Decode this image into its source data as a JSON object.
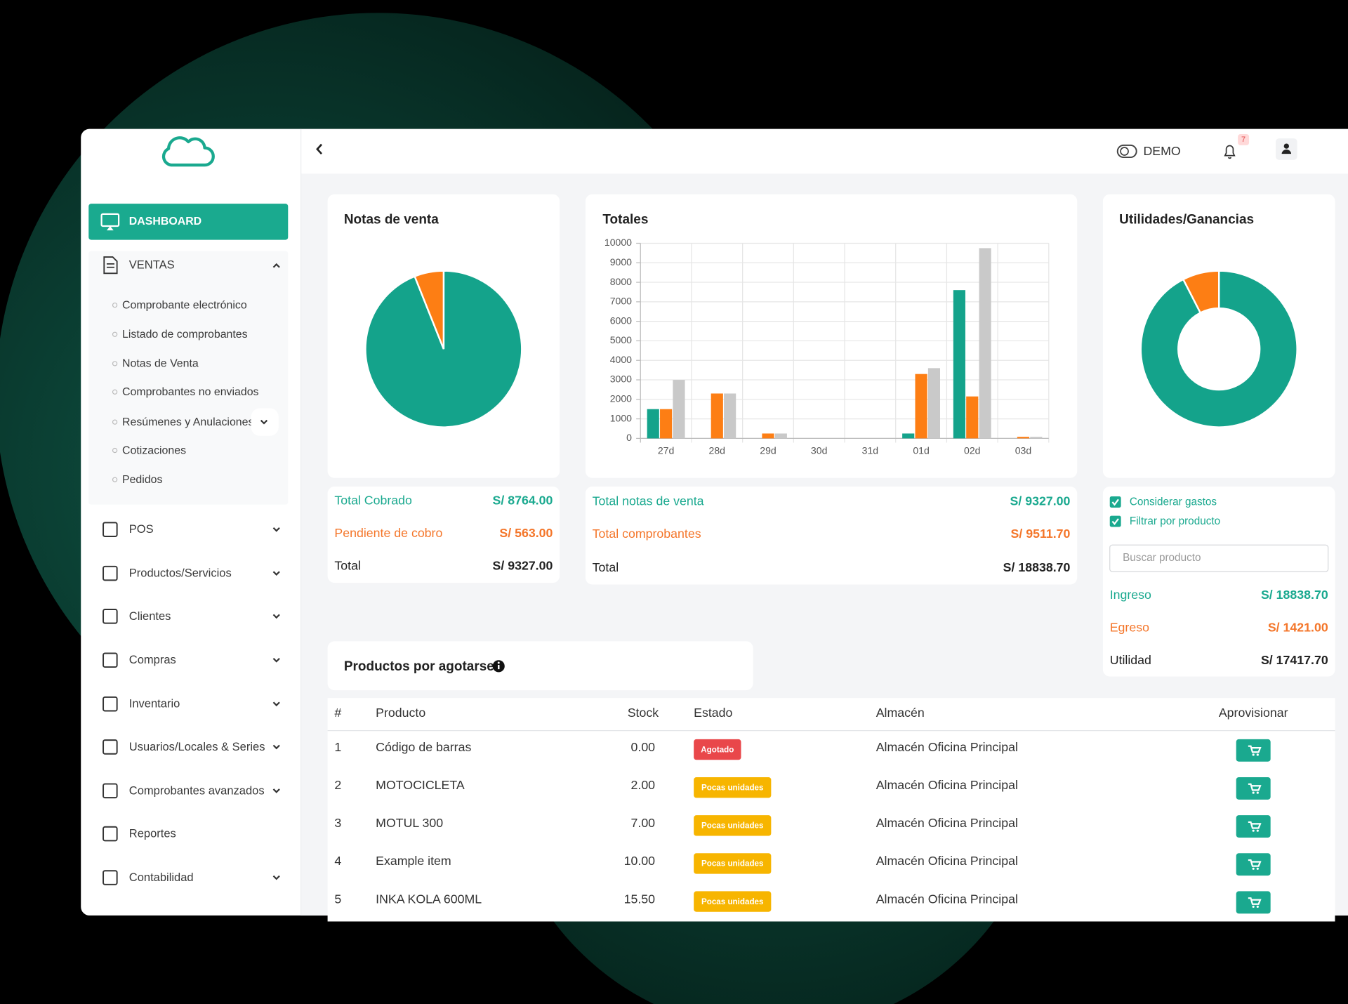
{
  "sidebar": {
    "active": "DASHBOARD",
    "section": "VENTAS",
    "submenu": [
      "Comprobante electrónico",
      "Listado de comprobantes",
      "Notas de Venta",
      "Comprobantes no enviados",
      "Resúmenes y Anulaciones",
      "Cotizaciones",
      "Pedidos"
    ],
    "menu": [
      "POS",
      "Productos/Servicios",
      "Clientes",
      "Compras",
      "Inventario",
      "Usuarios/Locales & Series",
      "Comprobantes avanzados",
      "Reportes",
      "Contabilidad"
    ]
  },
  "header": {
    "mode": "DEMO",
    "notifications": 7
  },
  "chart_data": [
    {
      "type": "pie",
      "title": "Notas de venta",
      "values": [
        8764,
        563
      ],
      "colors": [
        "#14a38b",
        "#fd7e14"
      ]
    },
    {
      "type": "bar",
      "title": "Totales",
      "categories": [
        "27d",
        "28d",
        "29d",
        "30d",
        "31d",
        "01d",
        "02d",
        "03d"
      ],
      "series": [
        {
          "color": "#14a38b",
          "values": [
            1500,
            0,
            0,
            0,
            0,
            250,
            7600,
            0
          ]
        },
        {
          "color": "#fd7e14",
          "values": [
            1500,
            2300,
            250,
            0,
            0,
            3300,
            2150,
            80
          ]
        },
        {
          "color": "#c9c9c9",
          "values": [
            3000,
            2300,
            250,
            0,
            0,
            3600,
            9750,
            80
          ]
        }
      ],
      "ylim": [
        0,
        10000
      ],
      "yticks": [
        0,
        1000,
        2000,
        3000,
        4000,
        5000,
        6000,
        7000,
        8000,
        9000,
        10000
      ],
      "grid": true
    },
    {
      "type": "doughnut",
      "title": "Utilidades/Ganancias",
      "values": [
        17417.7,
        1421
      ],
      "colors": [
        "#14a38b",
        "#fd7e14"
      ]
    }
  ],
  "sales_summary": [
    {
      "label": "Total Cobrado",
      "value": "S/ 8764.00"
    },
    {
      "label": "Pendiente de cobro",
      "value": "S/ 563.00"
    },
    {
      "label": "Total",
      "value": "S/ 9327.00"
    }
  ],
  "totals_summary": [
    {
      "label": "Total notas de venta",
      "value": "S/ 9327.00"
    },
    {
      "label": "Total comprobantes",
      "value": "S/ 9511.70"
    },
    {
      "label": "Total",
      "value": "S/ 18838.70"
    }
  ],
  "profit_panel": {
    "checkboxes": [
      "Considerar gastos",
      "Filtrar por producto"
    ],
    "search_placeholder": "Buscar producto",
    "rows": [
      {
        "label": "Ingreso",
        "value": "S/ 18838.70"
      },
      {
        "label": "Egreso",
        "value": "S/ 1421.00"
      },
      {
        "label": "Utilidad",
        "value": "S/ 17417.70"
      }
    ]
  },
  "low_stock": {
    "title": "Productos por agotarse",
    "columns": [
      "#",
      "Producto",
      "Stock",
      "Estado",
      "Almacén",
      "Aprovisionar"
    ],
    "rows": [
      [
        "1",
        "Código de barras",
        "0.00",
        "Agotado",
        "Almacén Oficina Principal"
      ],
      [
        "2",
        "MOTOCICLETA",
        "2.00",
        "Pocas unidades",
        "Almacén Oficina Principal"
      ],
      [
        "3",
        "MOTUL 300",
        "7.00",
        "Pocas unidades",
        "Almacén Oficina Principal"
      ],
      [
        "4",
        "Example item",
        "10.00",
        "Pocas unidades",
        "Almacén Oficina Principal"
      ],
      [
        "5",
        "INKA KOLA 600ML",
        "15.50",
        "Pocas unidades",
        "Almacén Oficina Principal"
      ]
    ]
  }
}
